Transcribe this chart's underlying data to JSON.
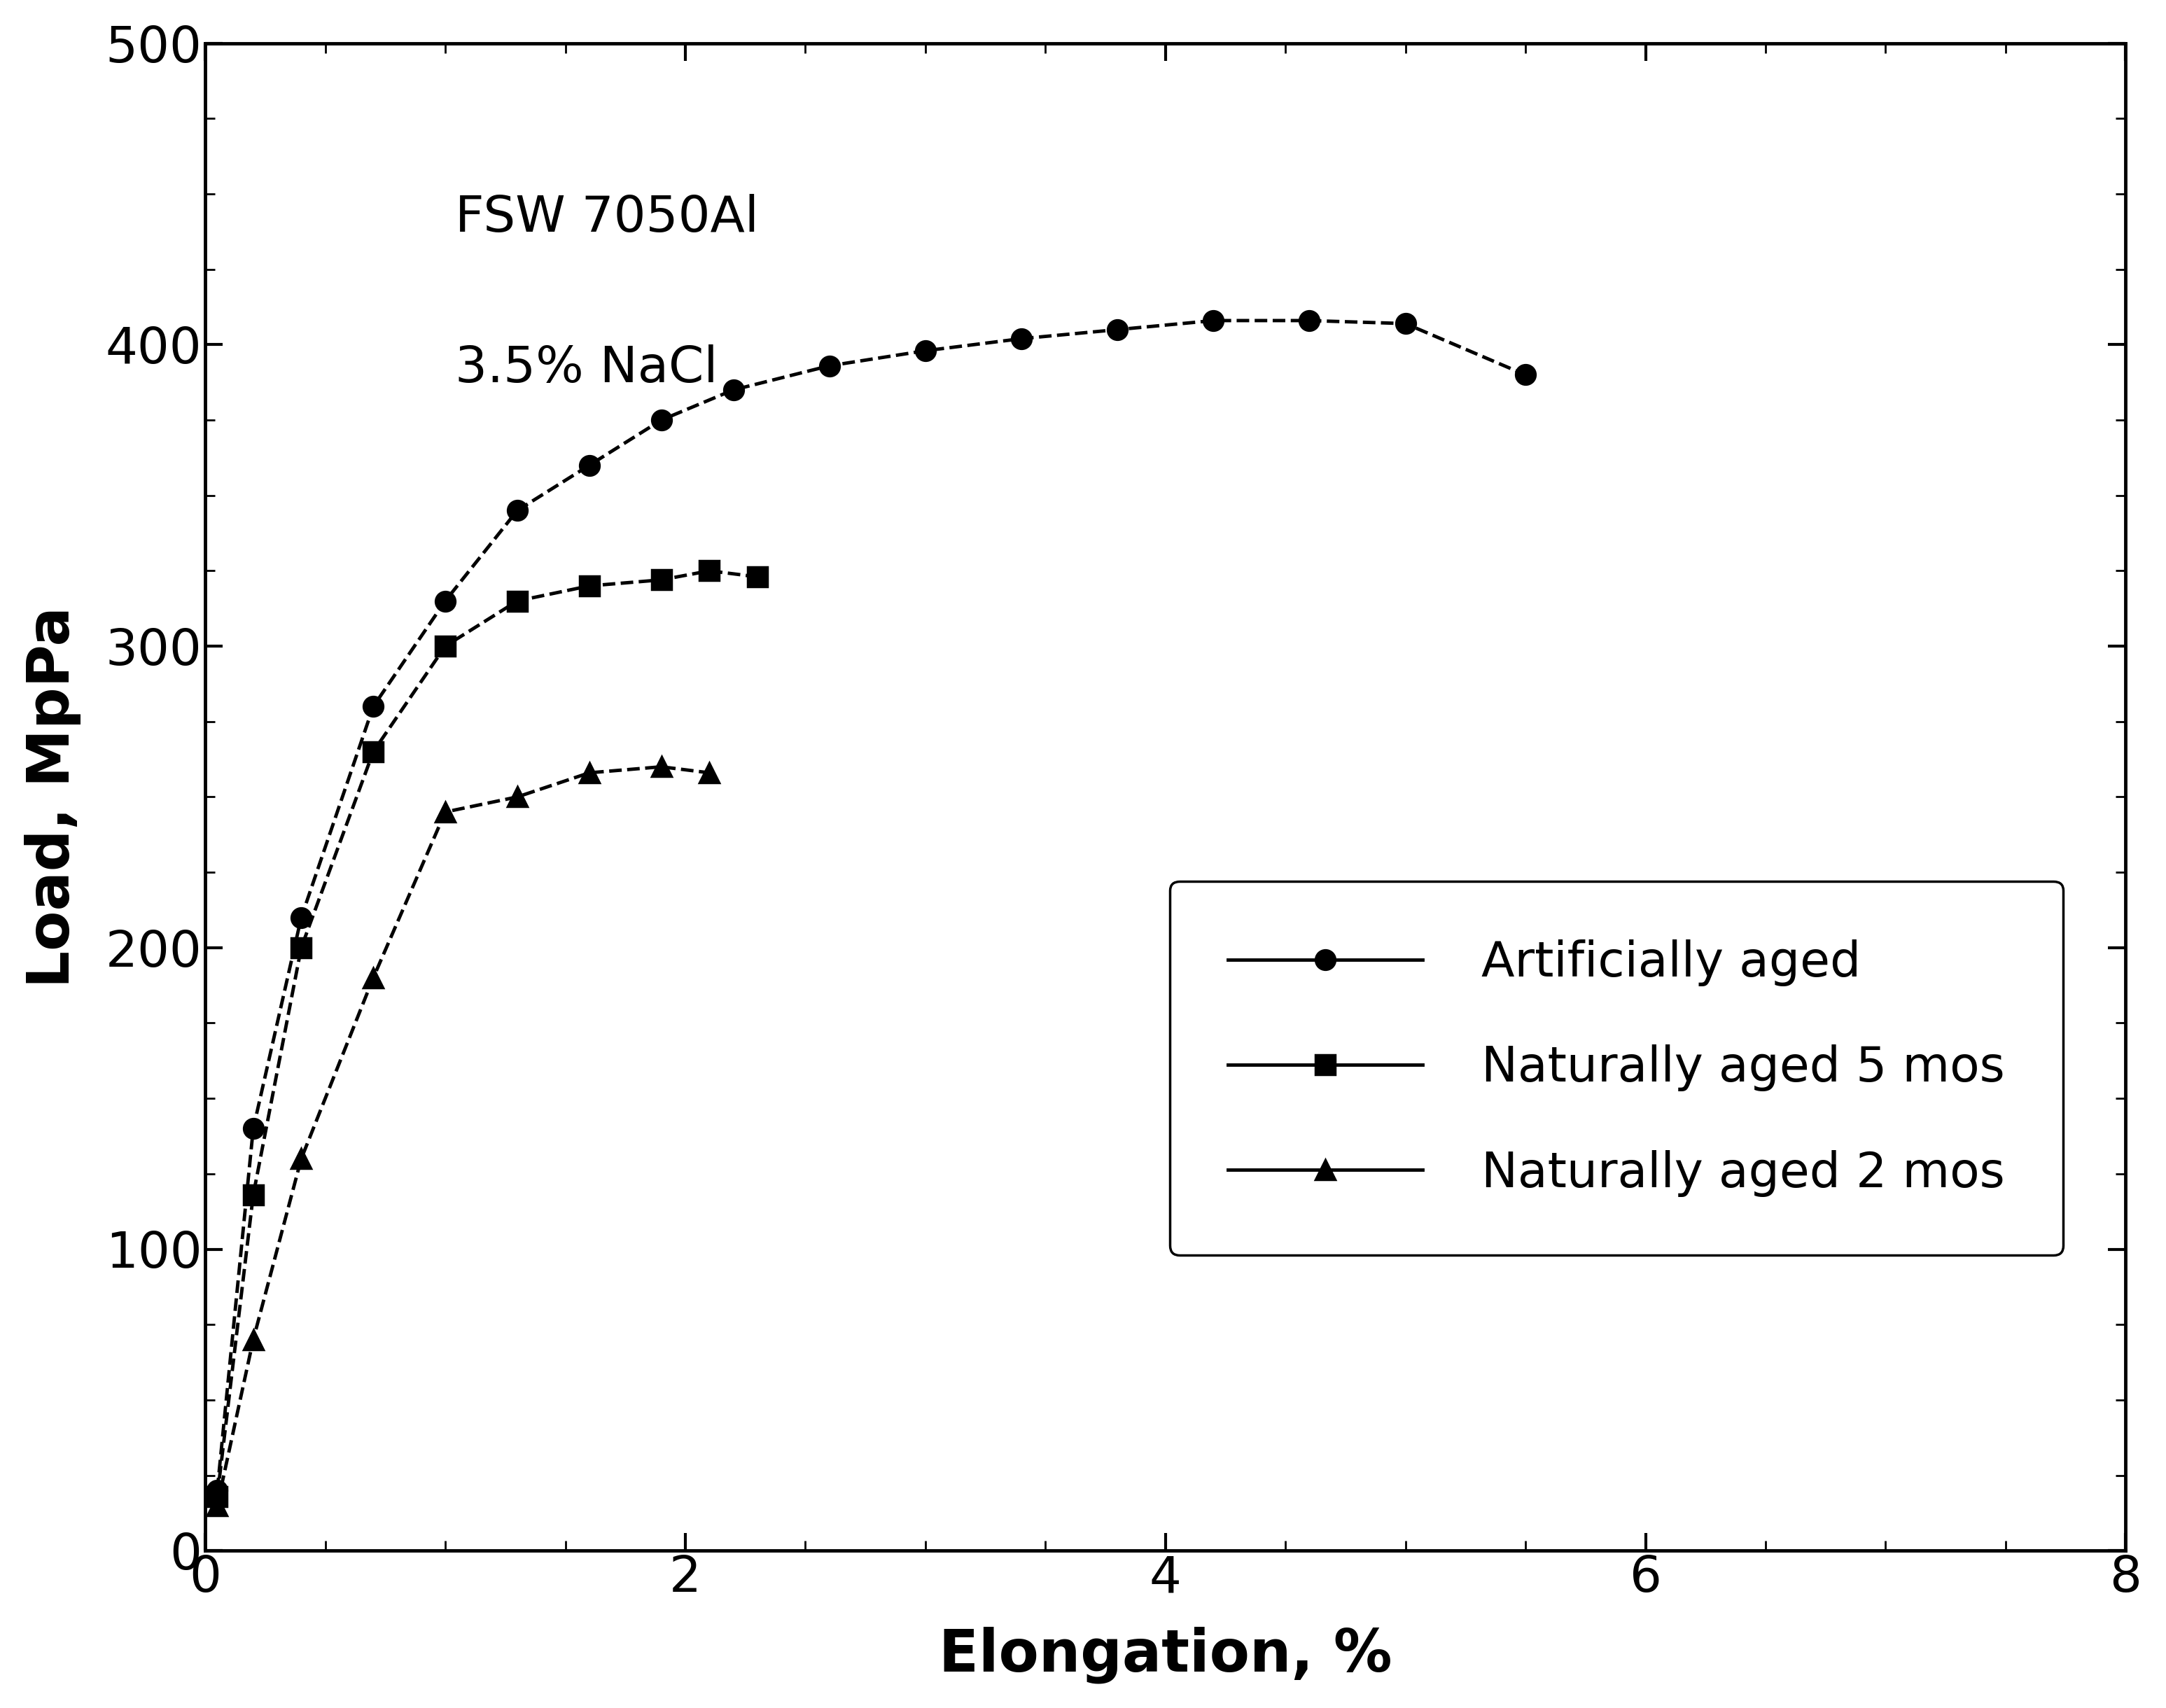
{
  "title_annotation_line1": "FSW 7050Al",
  "title_annotation_line2": "3.5% NaCl",
  "xlabel": "Elongation, %",
  "ylabel": "Load, MpPa",
  "xlim": [
    0,
    8
  ],
  "ylim": [
    0,
    500
  ],
  "xticks": [
    0,
    2,
    4,
    6,
    8
  ],
  "yticks": [
    0,
    100,
    200,
    300,
    400,
    500
  ],
  "series": [
    {
      "label": "Artificially aged",
      "marker": "o",
      "x": [
        0.05,
        0.2,
        0.4,
        0.7,
        1.0,
        1.3,
        1.6,
        1.9,
        2.2,
        2.6,
        3.0,
        3.4,
        3.8,
        4.2,
        4.6,
        5.0,
        5.5
      ],
      "y": [
        20,
        140,
        210,
        280,
        315,
        345,
        360,
        375,
        385,
        393,
        398,
        402,
        405,
        408,
        408,
        407,
        390
      ]
    },
    {
      "label": "Naturally aged 5 mos",
      "marker": "s",
      "x": [
        0.05,
        0.2,
        0.4,
        0.7,
        1.0,
        1.3,
        1.6,
        1.9,
        2.1,
        2.3
      ],
      "y": [
        18,
        118,
        200,
        265,
        300,
        315,
        320,
        322,
        325,
        323
      ]
    },
    {
      "label": "Naturally aged 2 mos",
      "marker": "^",
      "x": [
        0.05,
        0.2,
        0.4,
        0.7,
        1.0,
        1.3,
        1.6,
        1.9,
        2.1
      ],
      "y": [
        15,
        70,
        130,
        190,
        245,
        250,
        258,
        260,
        258
      ]
    }
  ],
  "line_color": "#000000",
  "line_style": "--",
  "line_width": 3.5,
  "marker_size": 20,
  "marker_fill": "#000000",
  "font_size_ticks": 52,
  "font_size_labels": 60,
  "font_size_legend": 50,
  "font_size_annotation": 52,
  "background_color": "#ffffff"
}
